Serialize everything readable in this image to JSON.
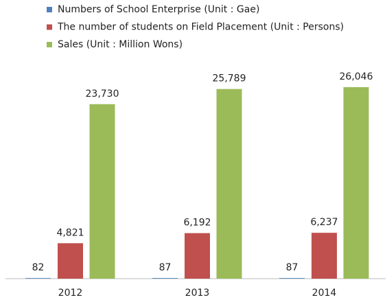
{
  "chart_data": {
    "type": "bar",
    "categories": [
      "2012",
      "2013",
      "2014"
    ],
    "series": [
      {
        "name": "Numbers of School Enterprise (Unit : Gae)",
        "color": "#4f81bd",
        "values": [
          82,
          87,
          87
        ],
        "value_labels": [
          "82",
          "87",
          "87"
        ]
      },
      {
        "name": "The number of students on Field Placement (Unit : Persons)",
        "color": "#c0504d",
        "values": [
          4821,
          6192,
          6237
        ],
        "value_labels": [
          "4,821",
          "6,192",
          "6,237"
        ]
      },
      {
        "name": "Sales (Unit : Million Wons)",
        "color": "#9bbb59",
        "values": [
          23730,
          25789,
          26046
        ],
        "value_labels": [
          "23,730",
          "25,789",
          "26,046"
        ]
      }
    ],
    "ylim": [
      0,
      28000
    ],
    "legend": "top-left"
  }
}
